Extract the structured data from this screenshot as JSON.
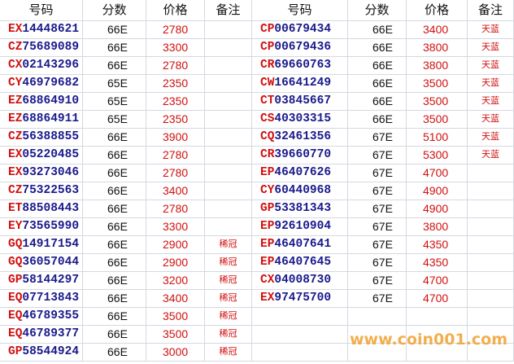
{
  "header": {
    "left": [
      "号码",
      "分数",
      "价格",
      "备注"
    ],
    "right": [
      "号码",
      "分数",
      "价格",
      "备注"
    ]
  },
  "left_rows": [
    [
      "EX14448621",
      "66E",
      2780
    ],
    [
      "CZ75689089",
      "66E",
      3300
    ],
    [
      "CX02143296",
      "66E",
      2780
    ],
    [
      "CY46979682",
      "65E",
      2350
    ],
    [
      "EZ68864910",
      "65E",
      2350
    ],
    [
      "EZ68864911",
      "65E",
      2350
    ],
    [
      "CZ56388855",
      "66E",
      3900
    ],
    [
      "EX05220485",
      "66E",
      2780
    ],
    [
      "EX93273046",
      "66E",
      2780
    ],
    [
      "CZ75322563",
      "66E",
      3400
    ],
    [
      "ET88508443",
      "66E",
      2780
    ],
    [
      "EY73565990",
      "66E",
      3300
    ],
    [
      "GQ14917154",
      "66E",
      2900,
      "稀冠"
    ],
    [
      "GQ36057044",
      "66E",
      2900,
      "稀冠"
    ],
    [
      "GP58144297",
      "66E",
      3200,
      "稀冠"
    ],
    [
      "EQ07713843",
      "66E",
      3400,
      "稀冠"
    ],
    [
      "EQ46789355",
      "66E",
      3500,
      "稀冠"
    ],
    [
      "EQ46789377",
      "66E",
      3500,
      "稀冠"
    ],
    [
      "GP58544924",
      "66E",
      3000,
      "稀冠"
    ]
  ],
  "right_rows": [
    [
      "CP00679434",
      "66E",
      3400,
      "天蓝"
    ],
    [
      "CP00679436",
      "66E",
      3800,
      "天蓝"
    ],
    [
      "CR69660763",
      "66E",
      3800,
      "天蓝"
    ],
    [
      "CW16641249",
      "66E",
      3500,
      "天蓝"
    ],
    [
      "CT03845667",
      "66E",
      3500,
      "天蓝"
    ],
    [
      "CS40303315",
      "66E",
      3500,
      "天蓝"
    ],
    [
      "CQ32461356",
      "67E",
      5100,
      "天蓝"
    ],
    [
      "CR39660770",
      "67E",
      5300,
      "天蓝"
    ],
    [
      "EP46407626",
      "67E",
      4700
    ],
    [
      "CY60440968",
      "67E",
      4900
    ],
    [
      "GP53381343",
      "67E",
      4900
    ],
    [
      "EP92610904",
      "67E",
      3800
    ],
    [
      "EP46407641",
      "67E",
      4350
    ],
    [
      "EP46407645",
      "67E",
      4350
    ],
    [
      "CX04008730",
      "67E",
      4700
    ],
    [
      "EX97475700",
      "67E",
      4700
    ]
  ],
  "watermark": "www.coin001.com"
}
